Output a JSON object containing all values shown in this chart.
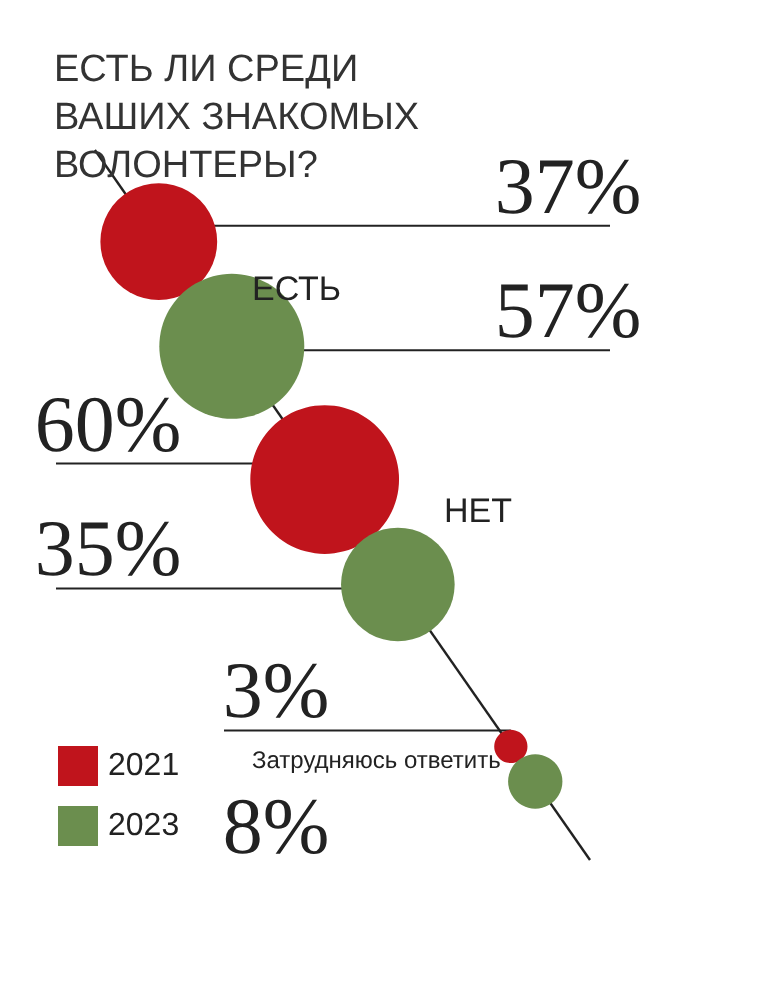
{
  "chart_data": {
    "type": "other",
    "title": "ЕСТЬ ЛИ СРЕДИ ВАШИХ ЗНАКОМЫХ ВОЛОНТЕРЫ?",
    "categories": [
      "ЕСТЬ",
      "НЕТ",
      "Затрудняюсь ответить"
    ],
    "series": [
      {
        "name": "2021",
        "color": "#c0141c",
        "values": [
          37,
          60,
          3
        ],
        "value_labels": [
          "37%",
          "60%",
          "3%"
        ]
      },
      {
        "name": "2023",
        "color": "#6b8e4e",
        "values": [
          57,
          35,
          8
        ],
        "value_labels": [
          "57%",
          "35%",
          "8%"
        ]
      }
    ],
    "legend": "bottom left"
  }
}
